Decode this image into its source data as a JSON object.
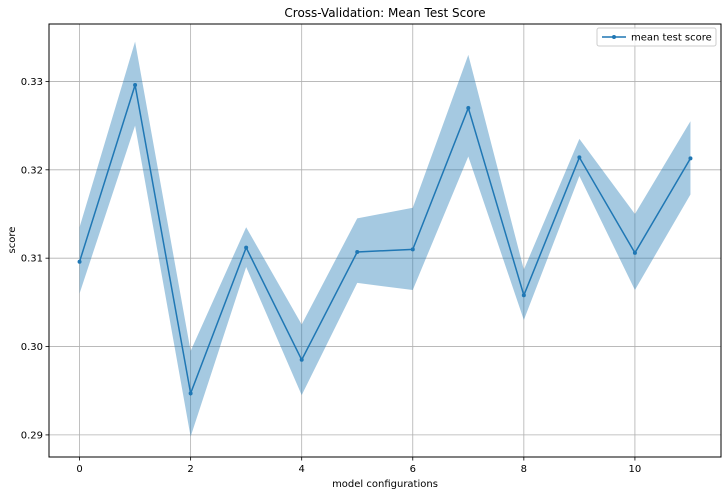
{
  "chart_data": {
    "type": "line",
    "title": "Cross-Validation: Mean Test Score",
    "xlabel": "model configurations",
    "ylabel": "score",
    "xlim": [
      -0.55,
      11.55
    ],
    "ylim": [
      0.2875,
      0.3365
    ],
    "xticks": [
      0,
      2,
      4,
      6,
      8,
      10
    ],
    "yticks": [
      0.29,
      0.3,
      0.31,
      0.32,
      0.33
    ],
    "xtick_labels": [
      "0",
      "2",
      "4",
      "6",
      "8",
      "10"
    ],
    "ytick_labels": [
      "0.29",
      "0.30",
      "0.31",
      "0.32",
      "0.33"
    ],
    "grid": true,
    "legend": {
      "placement": "top-right",
      "entries": [
        "mean test score"
      ]
    },
    "series": [
      {
        "name": "mean test score",
        "color": "#1f77b4",
        "band_color": "#1f77b4",
        "x": [
          0,
          1,
          2,
          3,
          4,
          5,
          6,
          7,
          8,
          9,
          10,
          11
        ],
        "y": [
          0.3096,
          0.3296,
          0.2947,
          0.3112,
          0.2985,
          0.3107,
          0.311,
          0.327,
          0.3058,
          0.3214,
          0.3106,
          0.3213
        ],
        "upper": [
          0.3135,
          0.3345,
          0.2995,
          0.3135,
          0.3025,
          0.3145,
          0.3157,
          0.333,
          0.3087,
          0.3235,
          0.315,
          0.3255
        ],
        "lower": [
          0.306,
          0.325,
          0.2898,
          0.309,
          0.2945,
          0.3072,
          0.3064,
          0.3215,
          0.303,
          0.3193,
          0.3064,
          0.3172
        ]
      }
    ]
  }
}
